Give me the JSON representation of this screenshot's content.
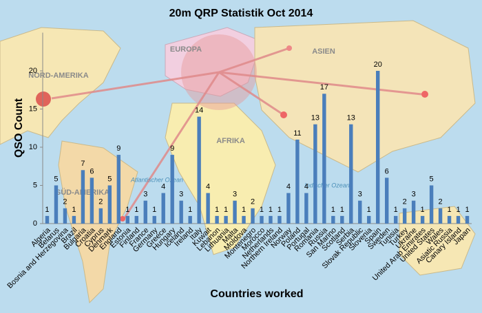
{
  "chart_data": {
    "type": "bar",
    "title": "20m QRP  Statistik Oct 2014",
    "x_label": "Countries worked",
    "y_label": "QSO Count",
    "categories": [
      "Algeria",
      "Belarus",
      "Bosnia and Herzegovina",
      "Brazil",
      "Bulgaria",
      "Croatia",
      "Cyprus",
      "Denmark",
      "England",
      "Estonia",
      "Finland",
      "France",
      "Germany",
      "Greece",
      "Hungary",
      "Iceland",
      "Ireland",
      "Italy",
      "Kuwait",
      "Lebanon",
      "Lithuania",
      "Malta",
      "Moldova",
      "Montenegro",
      "Morocco",
      "Netherlands",
      "Northern Ireland",
      "Norway",
      "Poland",
      "Portugal",
      "Romania",
      "Russia",
      "San Marino",
      "Scotland",
      "Serbia",
      "Slovak Republic",
      "Slovenia",
      "Spain",
      "Sweden",
      "Tunisia",
      "Turkey",
      "Ukraine",
      "United Arab Emirates",
      "United States",
      "Wales",
      "Asiatic Russia",
      "Canary Island",
      "Japan"
    ],
    "values": [
      1,
      5,
      2,
      1,
      7,
      6,
      2,
      5,
      9,
      1,
      1,
      3,
      1,
      4,
      9,
      3,
      1,
      14,
      4,
      1,
      1,
      3,
      1,
      2,
      1,
      1,
      1,
      4,
      11,
      4,
      13,
      17,
      1,
      1,
      13,
      3,
      1,
      20,
      6,
      1,
      2,
      3,
      1,
      5,
      2,
      1,
      1,
      1
    ],
    "color": "#4a7ebb",
    "ylim": [
      0,
      25
    ],
    "yticks": [
      0,
      5,
      10,
      15,
      20
    ],
    "grid": false
  },
  "background_map": {
    "labels": [
      "EUROPA",
      "ASIEN",
      "NORD-AMERIKA",
      "AFRIKA",
      "SÜD-AMERIKA",
      "Atlantischer Ozean",
      "Indischer Ozean"
    ]
  }
}
